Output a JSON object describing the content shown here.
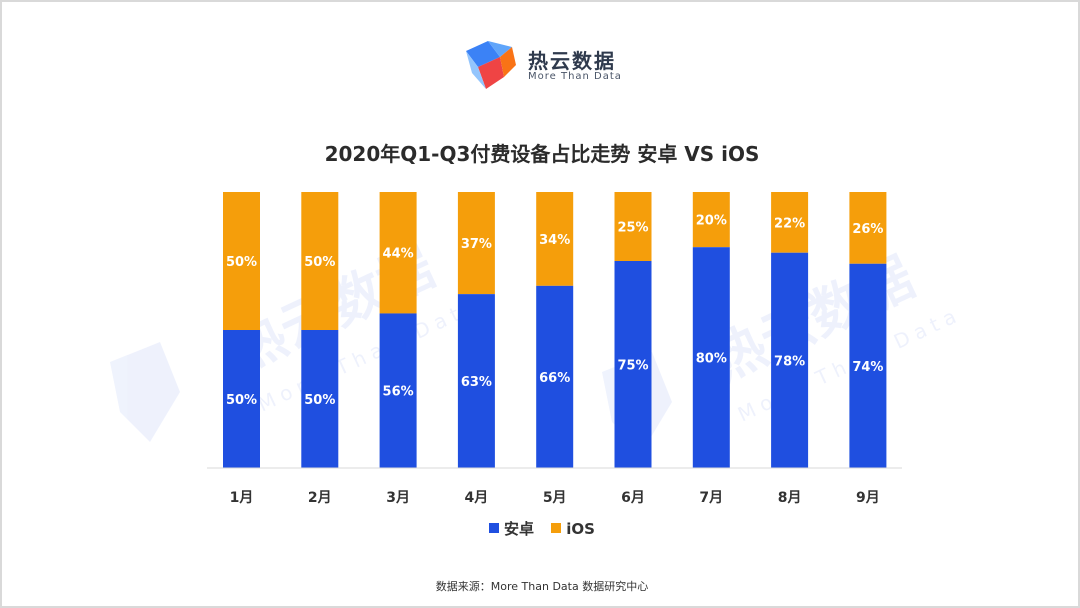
{
  "header": {
    "brand_name": "热云数据",
    "brand_tagline": "More Than Data"
  },
  "watermark": {
    "brand_name": "热云数据",
    "brand_tagline": "More Than Data"
  },
  "footer": {
    "source": "数据来源：More Than Data 数据研究中心"
  },
  "colors": {
    "android": "#1f4fe0",
    "ios": "#f59e0b"
  },
  "chart_data": {
    "type": "bar",
    "stacked": true,
    "title": "2020年Q1-Q3付费设备占比走势 安卓 VS iOS",
    "categories": [
      "1月",
      "2月",
      "3月",
      "4月",
      "5月",
      "6月",
      "7月",
      "8月",
      "9月"
    ],
    "series": [
      {
        "name": "安卓",
        "values": [
          50,
          50,
          56,
          63,
          66,
          75,
          80,
          78,
          74
        ]
      },
      {
        "name": "iOS",
        "values": [
          50,
          50,
          44,
          37,
          34,
          25,
          20,
          22,
          26
        ]
      }
    ],
    "value_suffix": "%",
    "ylim": [
      0,
      100
    ],
    "grid": false,
    "legend": "bottom"
  }
}
